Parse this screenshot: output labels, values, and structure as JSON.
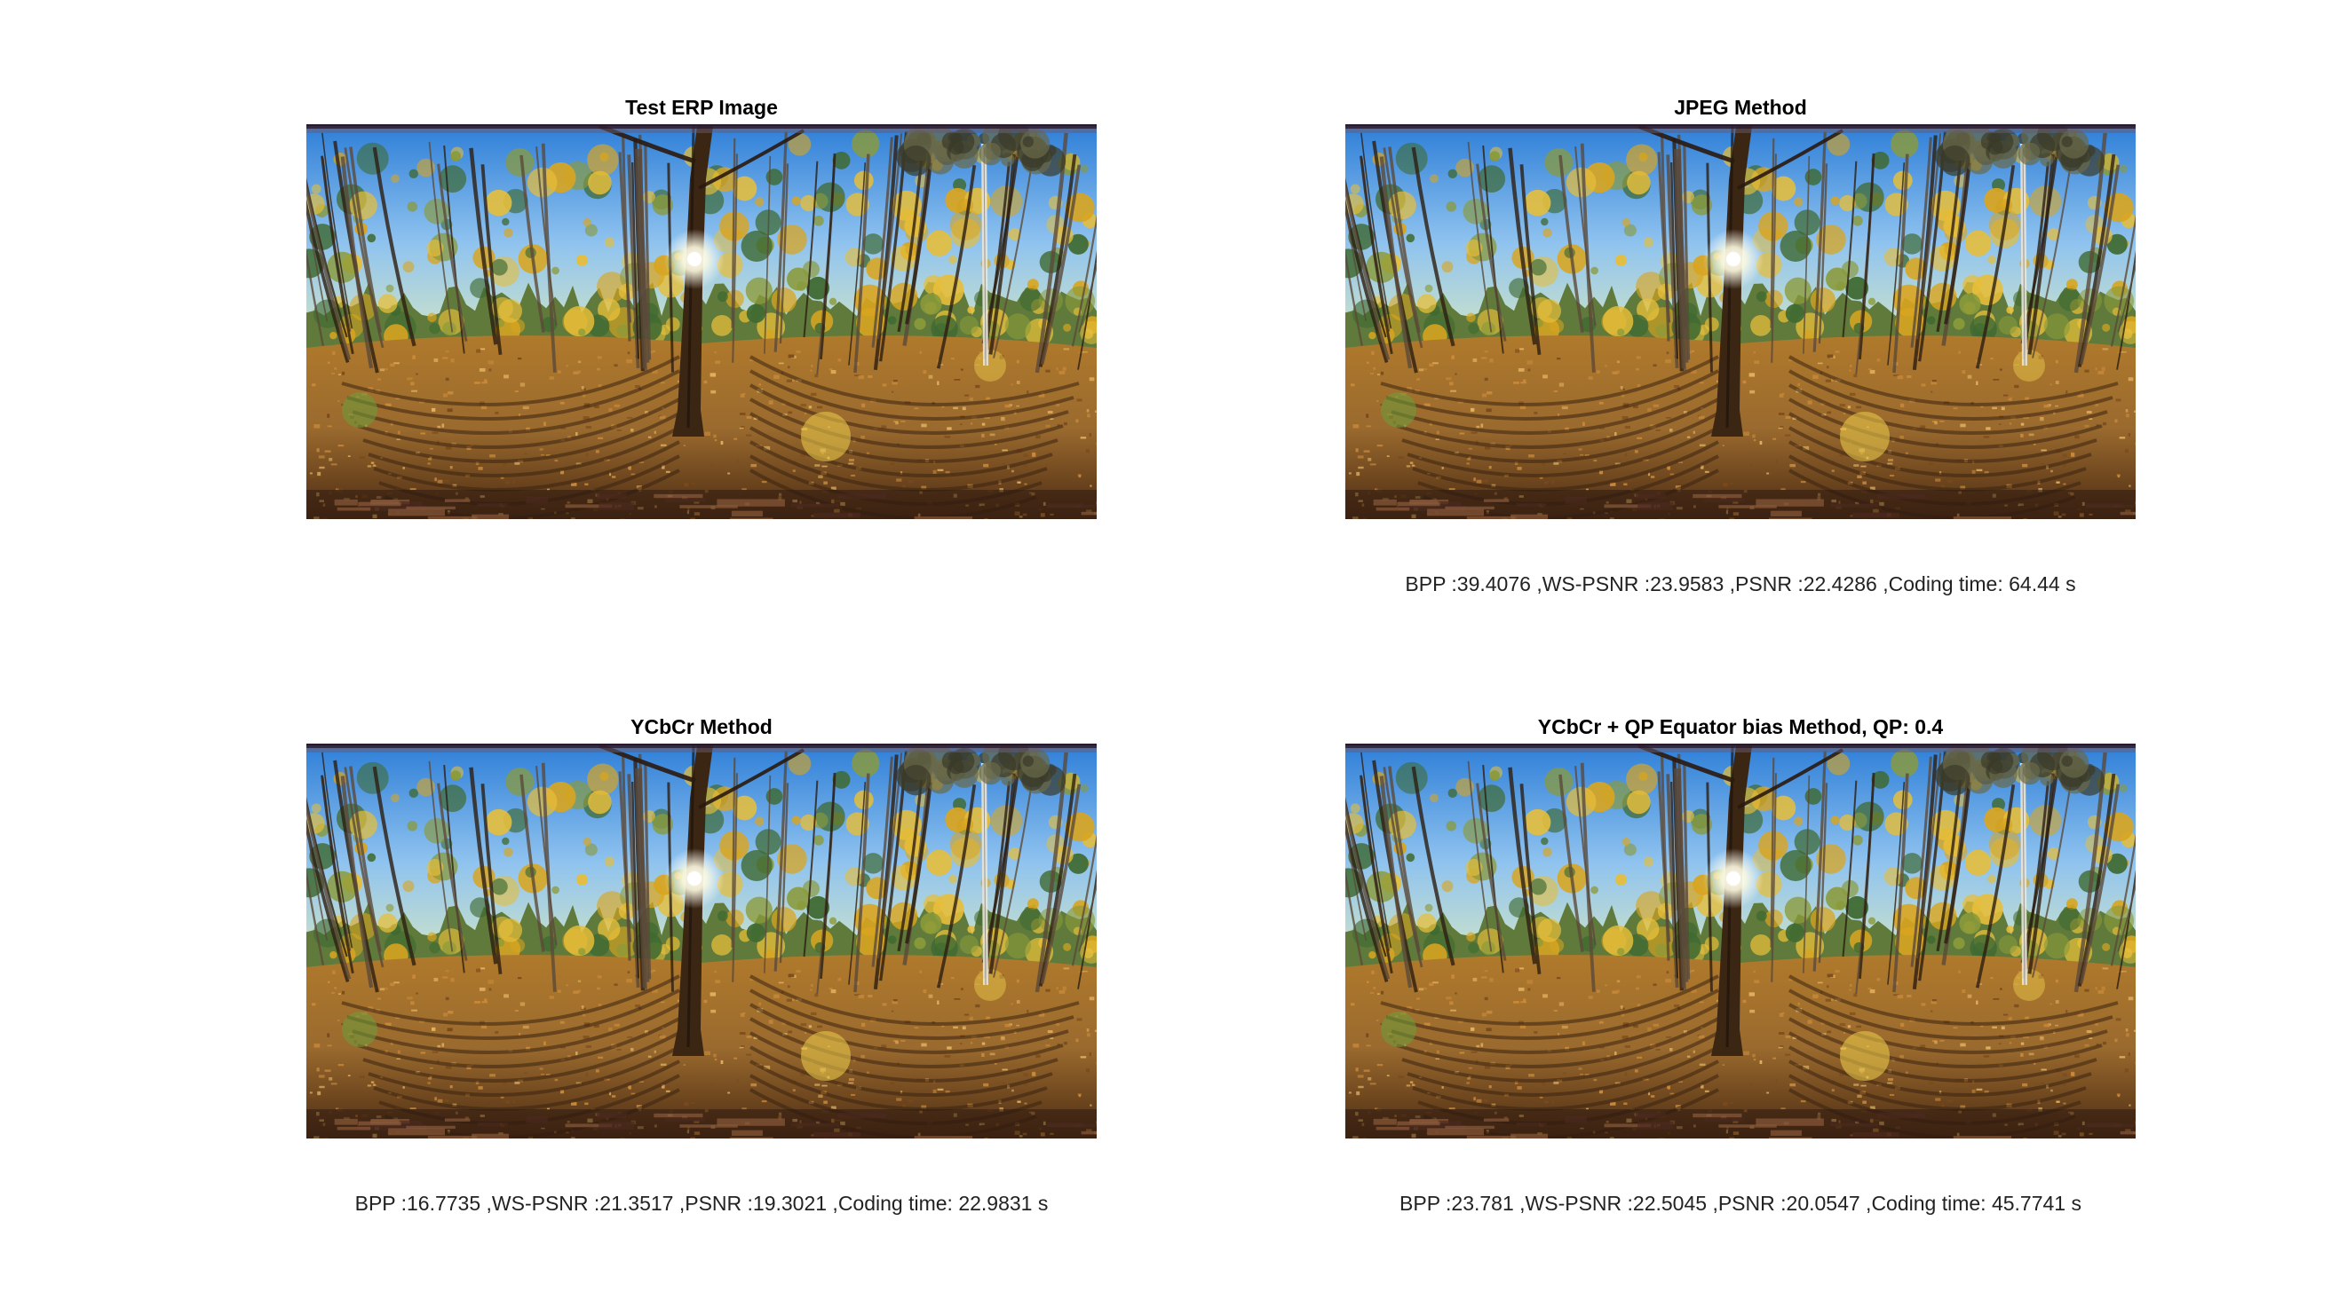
{
  "panels": [
    {
      "title": "Test ERP Image",
      "caption": ""
    },
    {
      "title": "JPEG Method",
      "caption": "BPP :39.4076 ,WS-PSNR :23.9583 ,PSNR :22.4286 ,Coding time: 64.44 s"
    },
    {
      "title": "YCbCr Method",
      "caption": "BPP :16.7735 ,WS-PSNR :21.3517 ,PSNR :19.3021 ,Coding time: 22.9831 s"
    },
    {
      "title": "YCbCr + QP Equator bias Method, QP: 0.4",
      "caption": "BPP :23.781 ,WS-PSNR :22.5045 ,PSNR :20.0547 ,Coding time: 45.7741 s"
    }
  ],
  "colors": {
    "sky": "#2f7fd8",
    "sky_light": "#8fc3ef",
    "foliage_gold": "#d9a520",
    "ground": "#9a6a2e",
    "ground_dark": "#4a2a12",
    "trunk": "#3b2613"
  }
}
